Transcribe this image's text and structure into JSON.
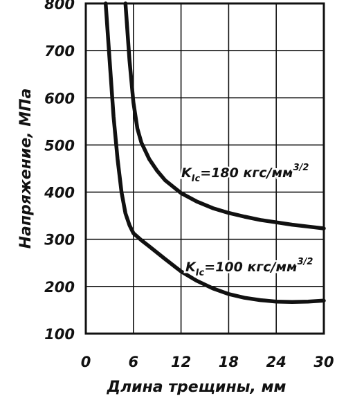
{
  "chart_data": {
    "type": "line",
    "xlabel": "Длина трещины, мм",
    "ylabel": "Напряжение, МПа",
    "xlim": [
      0,
      30
    ],
    "ylim": [
      100,
      800
    ],
    "x_ticks": [
      "0",
      "6",
      "12",
      "18",
      "24",
      "30"
    ],
    "y_ticks": [
      "100",
      "200",
      "300",
      "400",
      "500",
      "600",
      "700",
      "800"
    ],
    "grid": true,
    "colors": {
      "line": "#111111",
      "grid": "#111111",
      "background": "#ffffff"
    },
    "series": [
      {
        "label_prefix": "K",
        "label_subscript": "Ic",
        "label_value": "=180 кгс/мм",
        "label_power": "3/2",
        "x": [
          5.0,
          5.5,
          6.0,
          6.5,
          7.0,
          8.0,
          9.0,
          10.0,
          12.0,
          14.0,
          16.0,
          18.0,
          20.0,
          22.0,
          24.0,
          26.0,
          28.0,
          30.0
        ],
        "values": [
          800,
          680,
          590,
          535,
          505,
          470,
          445,
          425,
          398,
          380,
          366,
          356,
          348,
          341,
          336,
          331,
          327,
          323
        ]
      },
      {
        "label_prefix": "K",
        "label_subscript": "Ic",
        "label_value": "=100 кгс/мм",
        "label_power": "3/2",
        "x": [
          2.5,
          3.0,
          3.5,
          4.0,
          4.5,
          5.0,
          5.5,
          6.0,
          7.0,
          8.0,
          10.0,
          12.0,
          14.0,
          16.0,
          18.0,
          20.0,
          22.0,
          24.0,
          26.0,
          28.0,
          30.0
        ],
        "values": [
          800,
          680,
          560,
          470,
          400,
          355,
          330,
          313,
          298,
          285,
          258,
          232,
          212,
          196,
          184,
          176,
          171,
          168,
          167,
          168,
          170
        ]
      }
    ]
  }
}
